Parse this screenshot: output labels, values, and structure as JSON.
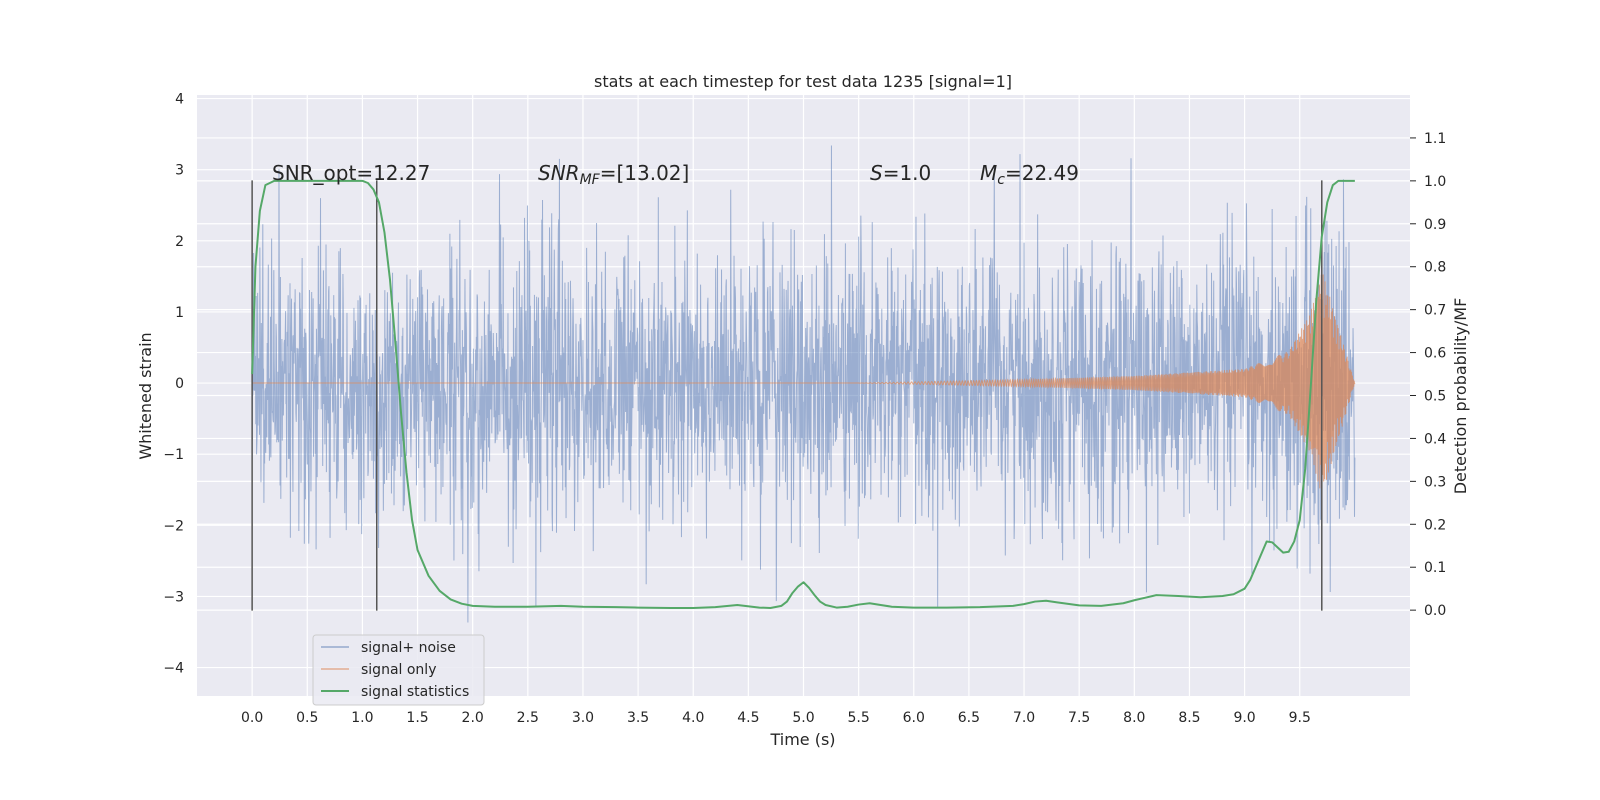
{
  "chart_data": {
    "type": "line",
    "title": "stats at each timestep for test data 1235 [signal=1]",
    "xlabel": "Time (s)",
    "ylabel": "Whitened strain",
    "ylabel_right": "Detection probability/MF",
    "xlim": [
      -0.5,
      10.5
    ],
    "ylim": [
      -4.4,
      4.05
    ],
    "ylim_right": [
      -0.2,
      1.2
    ],
    "x_ticks": [
      0.0,
      0.5,
      1.0,
      1.5,
      2.0,
      2.5,
      3.0,
      3.5,
      4.0,
      4.5,
      5.0,
      5.5,
      6.0,
      6.5,
      7.0,
      7.5,
      8.0,
      8.5,
      9.0,
      9.5
    ],
    "x_tick_labels": [
      "0.0",
      "0.5",
      "1.0",
      "1.5",
      "2.0",
      "2.5",
      "3.0",
      "3.5",
      "4.0",
      "4.5",
      "5.0",
      "5.5",
      "6.0",
      "6.5",
      "7.0",
      "7.5",
      "8.0",
      "8.5",
      "9.0",
      "9.5"
    ],
    "y_ticks": [
      -4,
      -3,
      -2,
      -1,
      0,
      1,
      2,
      3,
      4
    ],
    "y_tick_labels": [
      "−4",
      "−3",
      "−2",
      "−1",
      "0",
      "1",
      "2",
      "3",
      "4"
    ],
    "y_right_ticks": [
      0.0,
      0.1,
      0.2,
      0.3,
      0.4,
      0.5,
      0.6,
      0.7,
      0.8,
      0.9,
      1.0,
      1.1
    ],
    "y_right_tick_labels": [
      "0.0",
      "0.1",
      "0.2",
      "0.3",
      "0.4",
      "0.5",
      "0.6",
      "0.7",
      "0.8",
      "0.9",
      "1.0",
      "1.1"
    ],
    "grid": true,
    "legend_position": "lower-left",
    "series": [
      {
        "name": "signal+ noise",
        "color": "#4c72b0",
        "axis": "left",
        "x_range": [
          0.0,
          10.0
        ],
        "typical_range": [
          -1.6,
          1.6
        ],
        "extreme_range": [
          -3.6,
          3.65
        ]
      },
      {
        "name": "signal only",
        "color": "#dd8452",
        "axis": "left",
        "description_points": {
          "x": [
            0.0,
            5.5,
            7.0,
            8.0,
            9.0,
            9.4,
            9.6,
            9.7,
            10.0
          ],
          "amplitude": [
            0.0,
            0.0,
            0.05,
            0.1,
            0.2,
            0.45,
            1.0,
            1.6,
            0.0
          ]
        }
      },
      {
        "name": "signal statistics",
        "color": "#55a868",
        "axis": "right",
        "x": [
          0.0,
          0.03,
          0.07,
          0.12,
          0.2,
          0.3,
          0.5,
          0.7,
          0.9,
          1.0,
          1.05,
          1.1,
          1.15,
          1.2,
          1.25,
          1.3,
          1.35,
          1.4,
          1.45,
          1.5,
          1.6,
          1.7,
          1.8,
          1.9,
          2.0,
          2.2,
          2.5,
          2.8,
          3.0,
          3.3,
          3.5,
          3.8,
          4.0,
          4.2,
          4.4,
          4.6,
          4.7,
          4.8,
          4.85,
          4.9,
          4.95,
          5.0,
          5.05,
          5.1,
          5.15,
          5.2,
          5.3,
          5.4,
          5.5,
          5.6,
          5.7,
          5.8,
          6.0,
          6.3,
          6.6,
          6.9,
          7.0,
          7.1,
          7.2,
          7.3,
          7.5,
          7.7,
          7.9,
          8.0,
          8.2,
          8.4,
          8.6,
          8.8,
          8.9,
          9.0,
          9.05,
          9.1,
          9.15,
          9.2,
          9.25,
          9.3,
          9.35,
          9.4,
          9.45,
          9.5,
          9.55,
          9.6,
          9.65,
          9.7,
          9.75,
          9.8,
          9.85,
          9.9,
          10.0
        ],
        "y": [
          0.55,
          0.8,
          0.93,
          0.99,
          1.0,
          1.0,
          1.0,
          1.0,
          1.0,
          1.0,
          0.995,
          0.98,
          0.95,
          0.88,
          0.77,
          0.62,
          0.46,
          0.32,
          0.21,
          0.14,
          0.08,
          0.045,
          0.025,
          0.015,
          0.01,
          0.008,
          0.008,
          0.01,
          0.008,
          0.007,
          0.006,
          0.005,
          0.005,
          0.007,
          0.012,
          0.006,
          0.005,
          0.01,
          0.02,
          0.04,
          0.055,
          0.065,
          0.052,
          0.035,
          0.02,
          0.012,
          0.006,
          0.008,
          0.013,
          0.016,
          0.012,
          0.008,
          0.006,
          0.006,
          0.007,
          0.01,
          0.014,
          0.02,
          0.022,
          0.018,
          0.011,
          0.01,
          0.016,
          0.023,
          0.035,
          0.033,
          0.03,
          0.033,
          0.037,
          0.05,
          0.07,
          0.1,
          0.13,
          0.16,
          0.158,
          0.146,
          0.134,
          0.136,
          0.16,
          0.21,
          0.33,
          0.52,
          0.72,
          0.87,
          0.95,
          0.99,
          1.0,
          1.0,
          1.0
        ]
      }
    ],
    "vertical_markers": [
      {
        "x": 0.0,
        "y_top": 2.85,
        "y_bottom": -3.2
      },
      {
        "x": 1.13,
        "y_top": 2.85,
        "y_bottom": -3.2
      },
      {
        "x": 9.7,
        "y_top": 2.85,
        "y_bottom": -3.2
      }
    ],
    "annotations": [
      {
        "text": "SNR_opt=12.27",
        "x": 0.2,
        "y": 2.9
      },
      {
        "text_main": "SNR",
        "text_sub": "MF",
        "text_rest": "=[13.02]",
        "x": 2.6,
        "y": 2.9
      },
      {
        "text_main": "S",
        "text_rest": "=1.0",
        "x": 5.6,
        "y": 2.9
      },
      {
        "text_main": "M",
        "text_sub": "c",
        "text_rest": "=22.49",
        "x": 6.6,
        "y": 2.9
      }
    ]
  }
}
